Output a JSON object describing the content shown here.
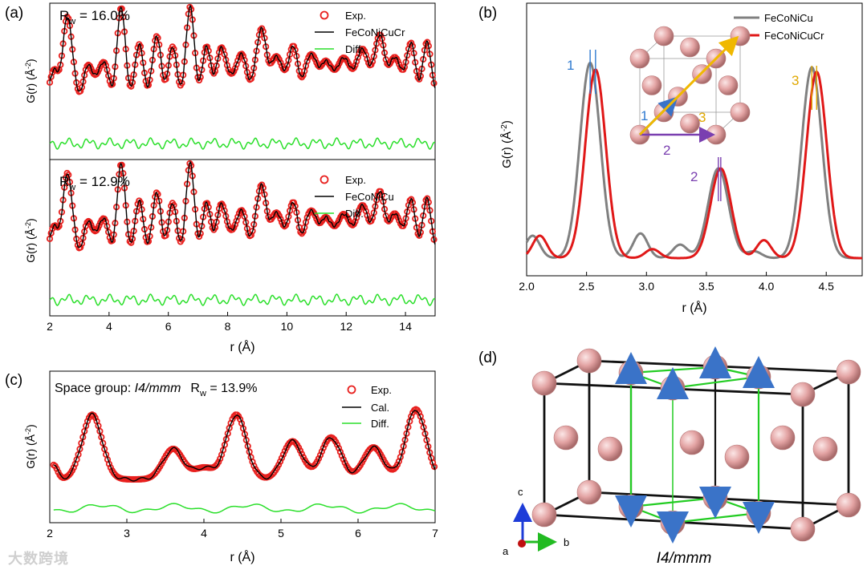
{
  "colors": {
    "exp": "#e8201e",
    "fit": "#000000",
    "diff": "#2adf2a",
    "gray": "#808080",
    "red": "#e01818",
    "atom": "#e6a7a7",
    "atom_edge": "#b77a7a",
    "green_line": "#22cc22",
    "arrow_blue": "#3a73c8",
    "yellow": "#f0b800",
    "purple": "#7a3fb0",
    "label_blue": "#2f7ad0",
    "label_yellow": "#e0a800",
    "label_purple": "#7a3fb0"
  },
  "watermark": "大数跨境",
  "chart_data": [
    {
      "id": "a",
      "panel_label": "(a)",
      "type": "line",
      "xlabel": "r (Å)",
      "xlim": [
        2,
        15
      ],
      "xticks": [
        "2",
        "4",
        "6",
        "8",
        "10",
        "12",
        "14"
      ],
      "subplots": [
        {
          "rw_prefix": "R",
          "rw_sub": "w",
          "rw_text": " = 16.0%",
          "ylabel": "G(r) (Å",
          "ylabel_sup": "-2",
          "ylabel_end": ")",
          "legend": [
            "Exp.",
            "FeCoNiCuCr",
            "Diff."
          ],
          "series": [
            {
              "name": "Exp.",
              "style": "circles"
            },
            {
              "name": "FeCoNiCuCr",
              "style": "line"
            },
            {
              "name": "Diff.",
              "style": "line"
            }
          ],
          "peaks": [
            2.55,
            3.6,
            4.4,
            5.05,
            5.65,
            6.15,
            6.75,
            7.3,
            7.7,
            8.15,
            8.6,
            9.2,
            9.8,
            10.3,
            10.95,
            11.55,
            12.1,
            12.65,
            13.2,
            13.8,
            14.25,
            14.75
          ],
          "heights": [
            0.95,
            0.28,
            0.9,
            0.35,
            0.5,
            0.3,
            0.92,
            0.3,
            0.4,
            0.28,
            0.3,
            0.85,
            0.4,
            0.45,
            0.48,
            0.35,
            0.4,
            0.55,
            0.75,
            0.38,
            0.42,
            0.38
          ]
        },
        {
          "rw_prefix": "R",
          "rw_sub": "w",
          "rw_text": " = 12.9%",
          "ylabel": "G(r) (Å",
          "ylabel_sup": "-2",
          "ylabel_end": ")",
          "legend": [
            "Exp.",
            "FeCoNiCu",
            "Diff."
          ],
          "series": [
            {
              "name": "Exp.",
              "style": "circles"
            },
            {
              "name": "FeCoNiCu",
              "style": "line"
            },
            {
              "name": "Diff.",
              "style": "line"
            }
          ],
          "peaks": [
            2.55,
            3.6,
            4.4,
            5.05,
            5.65,
            6.15,
            6.75,
            7.3,
            7.7,
            8.15,
            8.6,
            9.2,
            9.8,
            10.3,
            10.95,
            11.55,
            12.1,
            12.65,
            13.2,
            13.8,
            14.25,
            14.75
          ],
          "heights": [
            0.95,
            0.28,
            0.9,
            0.35,
            0.5,
            0.3,
            0.92,
            0.3,
            0.4,
            0.28,
            0.3,
            0.85,
            0.4,
            0.45,
            0.48,
            0.35,
            0.4,
            0.55,
            0.75,
            0.38,
            0.42,
            0.38
          ]
        }
      ]
    },
    {
      "id": "b",
      "panel_label": "(b)",
      "type": "line",
      "xlabel": "r (Å)",
      "xlim": [
        2.0,
        4.8
      ],
      "ylabel": "G(r) (Å",
      "ylabel_sup": "-2",
      "ylabel_end": ")",
      "xticks": [
        "2.0",
        "2.5",
        "3.0",
        "3.5",
        "4.0",
        "4.5"
      ],
      "legend": [
        "FeCoNiCu",
        "FeCoNiCuCr"
      ],
      "series": [
        {
          "name": "FeCoNiCu",
          "peaks": [
            2.53,
            3.6,
            4.38
          ],
          "heights": [
            0.87,
            0.4,
            0.85
          ],
          "minor": [
            2.05,
            2.95,
            3.28,
            3.9
          ],
          "minor_h": [
            0.1,
            0.11,
            0.06,
            0.03
          ]
        },
        {
          "name": "FeCoNiCuCr",
          "peaks": [
            2.575,
            3.62,
            4.42
          ],
          "heights": [
            0.84,
            0.4,
            0.83
          ],
          "minor": [
            2.11,
            3.05,
            3.98
          ],
          "minor_h": [
            0.1,
            0.04,
            0.08
          ]
        }
      ],
      "peak_labels": [
        "1",
        "2",
        "3"
      ],
      "vector_labels": [
        "1",
        "2",
        "3"
      ]
    },
    {
      "id": "c",
      "panel_label": "(c)",
      "type": "line",
      "title_prefix": "Space group: ",
      "title_italic": "I4/mmm",
      "rw_prefix": "R",
      "rw_sub": "w",
      "rw_text": " = 13.9%",
      "xlabel": "r (Å)",
      "xlim": [
        2,
        7
      ],
      "ylabel": "G(r) (Å",
      "ylabel_sup": "-2",
      "ylabel_end": ")",
      "xticks": [
        "2",
        "3",
        "4",
        "5",
        "6",
        "7"
      ],
      "legend": [
        "Exp.",
        "Cal.",
        "Diff."
      ],
      "series": [
        {
          "name": "Exp.",
          "style": "circles"
        },
        {
          "name": "Cal.",
          "style": "line"
        },
        {
          "name": "Diff.",
          "style": "line"
        }
      ],
      "peaks": [
        2.55,
        3.6,
        4.0,
        4.42,
        5.15,
        5.65,
        6.2,
        6.75
      ],
      "heights": [
        0.85,
        0.4,
        0.15,
        0.85,
        0.5,
        0.55,
        0.42,
        0.92
      ]
    },
    {
      "id": "d",
      "panel_label": "(d)",
      "type": "diagram",
      "caption": "I4/mmm",
      "axes": [
        "c",
        "a",
        "b"
      ]
    }
  ]
}
